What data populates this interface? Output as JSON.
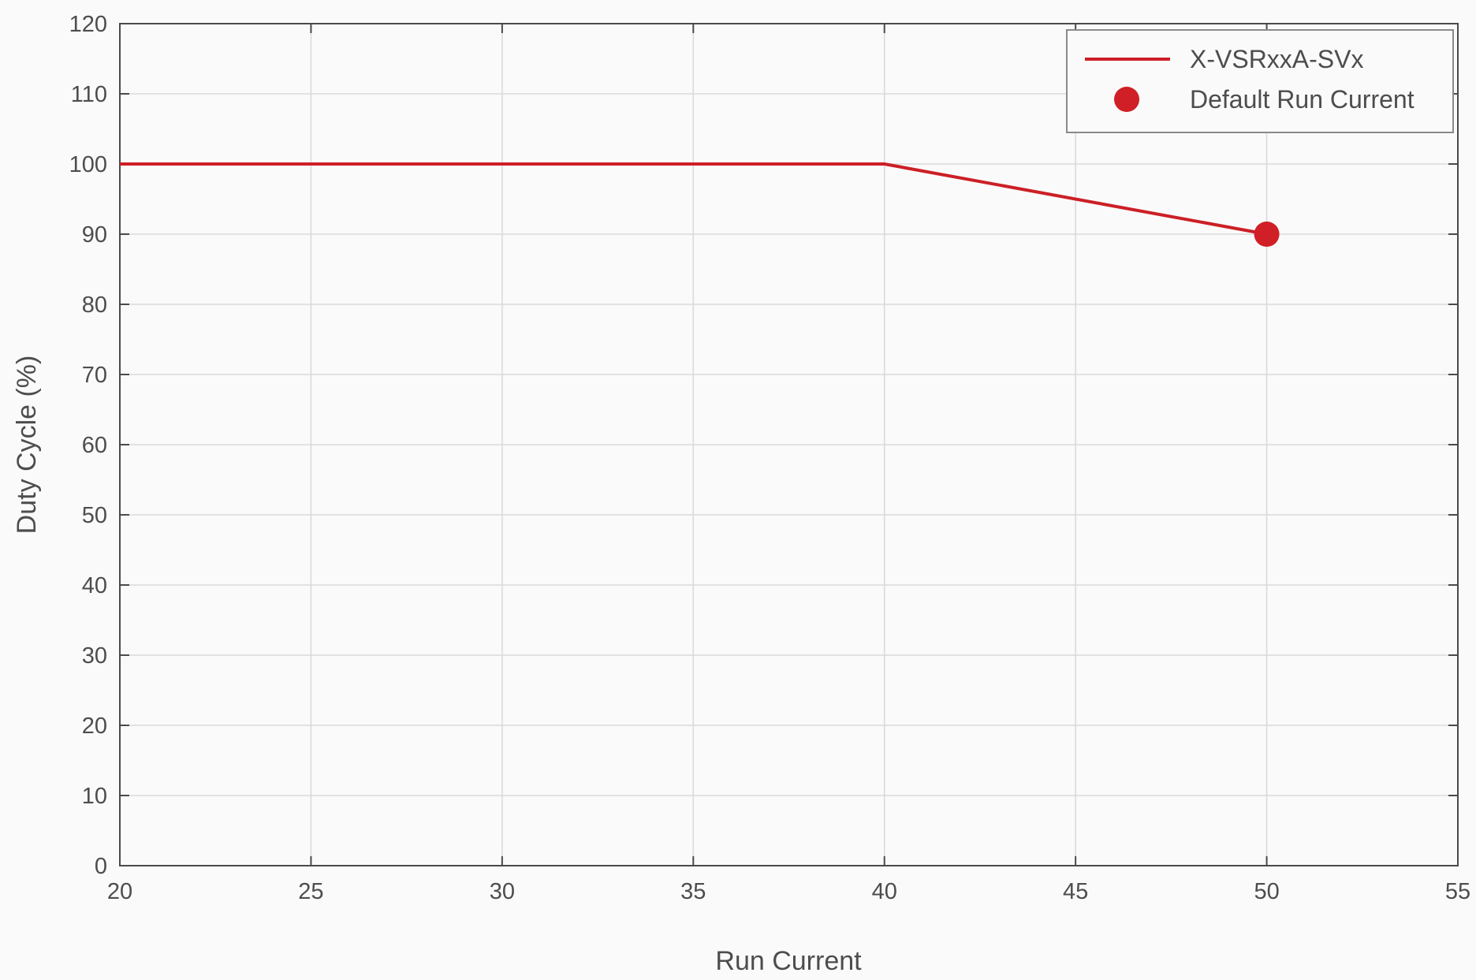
{
  "chart_data": {
    "type": "line",
    "xlabel": "Run Current",
    "ylabel": "Duty Cycle (%)",
    "xlim": [
      20,
      55
    ],
    "ylim": [
      0,
      120
    ],
    "x_ticks": [
      20,
      25,
      30,
      35,
      40,
      45,
      50,
      55
    ],
    "y_ticks": [
      0,
      10,
      20,
      30,
      40,
      50,
      60,
      70,
      80,
      90,
      100,
      110,
      120
    ],
    "grid": true,
    "legend_position": "top-right",
    "series": [
      {
        "name": "X-VSRxxA-SVx",
        "kind": "line",
        "color": "#cc1f26",
        "x": [
          20,
          40,
          50
        ],
        "y": [
          100,
          100,
          90
        ]
      },
      {
        "name": "Default Run Current",
        "kind": "marker",
        "color": "#d01f26",
        "x": [
          50
        ],
        "y": [
          90
        ]
      }
    ]
  }
}
